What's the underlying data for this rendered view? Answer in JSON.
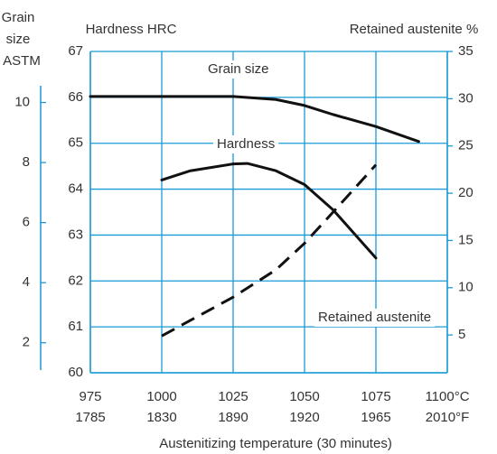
{
  "chart_data": {
    "type": "line",
    "xlabel": "Austenitizing temperature (30 minutes)",
    "ylabel": "Hardness HRC",
    "y2label": "Retained austenite %",
    "y3label": [
      "Grain",
      "size",
      "ASTM"
    ],
    "xlim": [
      975,
      1100
    ],
    "xticks": [
      975,
      1000,
      1025,
      1050,
      1075,
      {
        "value": 1100,
        "label": "1100°C"
      }
    ],
    "x2ticks": [
      1785,
      1830,
      1890,
      1920,
      1965,
      {
        "value": 2010,
        "label": "2010°F"
      }
    ],
    "ylim": [
      60,
      67
    ],
    "yticks": [
      60,
      61,
      62,
      63,
      64,
      65,
      66,
      67
    ],
    "y2lim": [
      1,
      35
    ],
    "y2ticks": [
      5,
      10,
      15,
      20,
      25,
      30,
      35
    ],
    "y3lim": [
      1,
      11.7
    ],
    "y3ticks": [
      2,
      4,
      6,
      8,
      10
    ],
    "grid": true,
    "grid_color": "#1a9ad6",
    "series": [
      {
        "name": "Grain size",
        "color": "#111111",
        "dash": false,
        "axis": "y3",
        "x": [
          975,
          1000,
          1025,
          1040,
          1050,
          1060,
          1075,
          1090
        ],
        "values": [
          10.2,
          10.2,
          10.2,
          10.1,
          9.9,
          9.6,
          9.2,
          8.7
        ]
      },
      {
        "name": "Hardness",
        "color": "#111111",
        "dash": false,
        "axis": "y",
        "x": [
          1000,
          1010,
          1025,
          1030,
          1040,
          1050,
          1060,
          1075
        ],
        "values": [
          64.2,
          64.4,
          64.55,
          64.56,
          64.4,
          64.1,
          63.55,
          62.5
        ]
      },
      {
        "name": "Retained austenite",
        "color": "#111111",
        "dash": true,
        "axis": "y2",
        "x": [
          1000,
          1025,
          1040,
          1050,
          1060,
          1075
        ],
        "values": [
          4.9,
          9,
          11.9,
          14.7,
          18,
          23
        ]
      }
    ]
  }
}
